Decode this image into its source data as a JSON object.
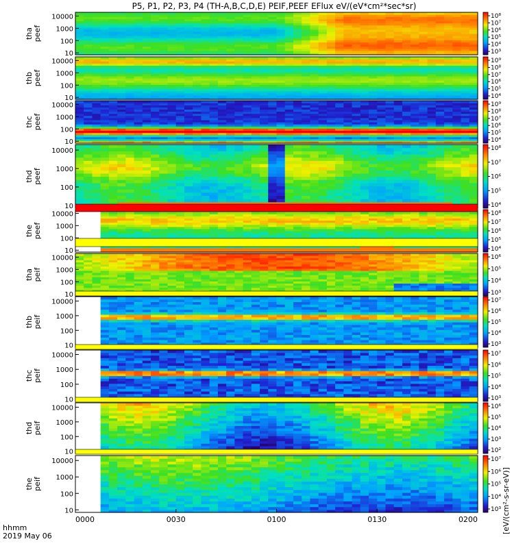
{
  "chart_data": {
    "type": "heatmap",
    "title": "P5, P1, P2, P3, P4 (TH-A,B,C,D,E) PEIF,PEEF EFlux eV/(eV*cm²*sec*sr)",
    "x_tick_labels": [
      "0000",
      "0030",
      "0100",
      "0130",
      "0200"
    ],
    "x_axis_left_labels": [
      "hhmm",
      "2019 May 06"
    ],
    "xlim": [
      "2019-05-06 00:00",
      "2019-05-06 02:00"
    ],
    "y_scale": "log",
    "ylim_eV": [
      7,
      20000
    ],
    "y_tick_labels": [
      "10000",
      "1000",
      "100",
      "10"
    ],
    "colorbar_units": "[eV/(cm²-s-sr-eV)]",
    "colorbar_scale": "log",
    "panels": [
      {
        "label": [
          "tha",
          "peef"
        ],
        "cbar_ticks": [
          "10⁸",
          "10⁷",
          "10⁶",
          "10⁵",
          "10⁴",
          "10³"
        ],
        "cbar_range": [
          1000,
          200000000
        ]
      },
      {
        "label": [
          "thb",
          "peef"
        ],
        "cbar_ticks": [
          "10⁹",
          "10⁸",
          "10⁷",
          "10⁶",
          "10⁵",
          "10⁴"
        ],
        "cbar_range": [
          5000,
          2000000000
        ]
      },
      {
        "label": [
          "thc",
          "peef"
        ],
        "cbar_ticks": [
          "10⁹",
          "10⁸",
          "10⁷",
          "10⁶",
          "10⁵",
          "10⁴"
        ],
        "cbar_range": [
          5000,
          2000000000
        ]
      },
      {
        "label": [
          "thd",
          "peef"
        ],
        "cbar_ticks": [
          "10⁸",
          "10⁷",
          "10⁶",
          "10⁵",
          "10⁴"
        ],
        "cbar_range": [
          5000,
          200000000
        ]
      },
      {
        "label": [
          "the",
          "peef"
        ],
        "cbar_ticks": [
          "10⁸",
          "10⁷",
          "10⁶",
          "10⁵",
          "10⁴"
        ],
        "cbar_range": [
          5000,
          200000000
        ]
      },
      {
        "label": [
          "tha",
          "peif"
        ],
        "cbar_ticks": [
          "10⁶",
          "10⁵",
          "10⁴",
          "10³"
        ],
        "cbar_range": [
          1000,
          2000000
        ]
      },
      {
        "label": [
          "thb",
          "peif"
        ],
        "cbar_ticks": [
          "10⁷",
          "10⁶",
          "10⁵",
          "10⁴",
          "10³"
        ],
        "cbar_range": [
          1000,
          20000000
        ]
      },
      {
        "label": [
          "thc",
          "peif"
        ],
        "cbar_ticks": [
          "10⁷",
          "10⁶",
          "10⁵",
          "10⁴",
          "10³"
        ],
        "cbar_range": [
          1000,
          20000000
        ]
      },
      {
        "label": [
          "thd",
          "peif"
        ],
        "cbar_ticks": [
          "10⁶",
          "10⁵",
          "10⁴",
          "10³",
          "10²"
        ],
        "cbar_range": [
          100,
          2000000
        ]
      },
      {
        "label": [
          "the",
          "peif"
        ],
        "cbar_ticks": [
          "10⁷",
          "10⁶",
          "10⁵",
          "10⁴",
          "10³"
        ],
        "cbar_range": [
          1000,
          20000000
        ]
      }
    ]
  }
}
